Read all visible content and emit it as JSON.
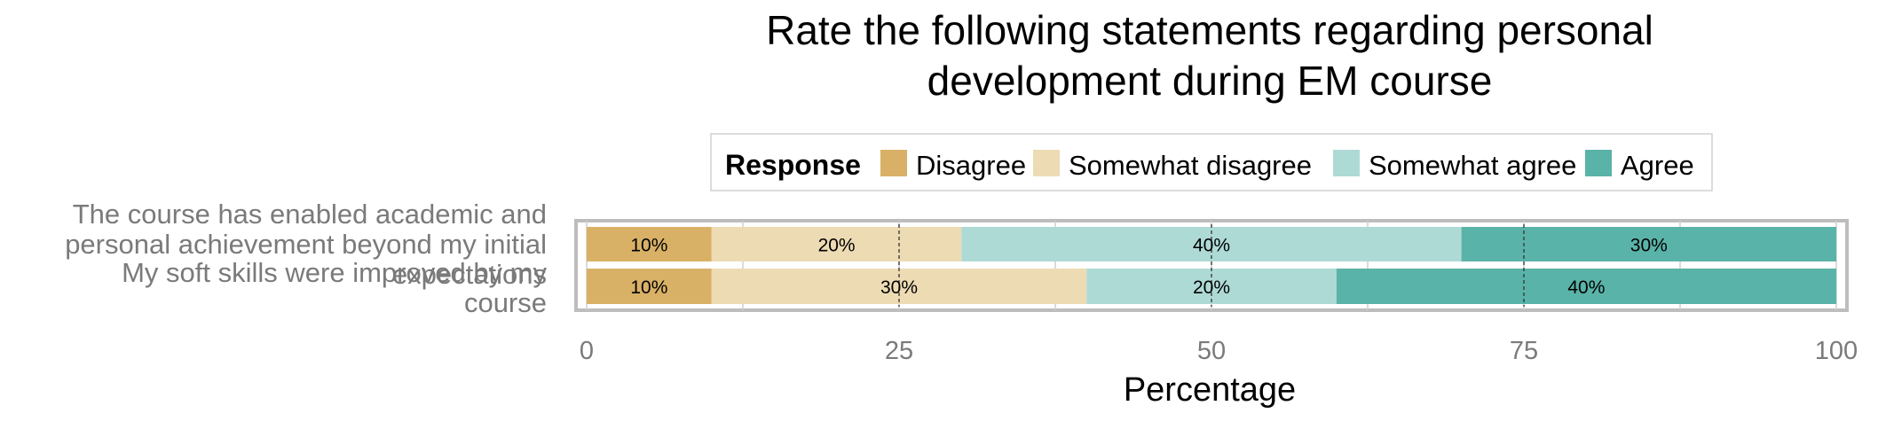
{
  "chart_data": {
    "type": "bar",
    "orientation": "horizontal",
    "stacked": true,
    "title_lines": [
      "Rate the following statements regarding personal",
      "development during EM course"
    ],
    "xlabel": "Percentage",
    "ylabel": "",
    "xlim": [
      0,
      100
    ],
    "x_ticks": [
      0,
      25,
      50,
      75,
      100
    ],
    "reference_lines": [
      25,
      50,
      75
    ],
    "grid": true,
    "legend": {
      "title": "Response",
      "placement": "top"
    },
    "categories": [
      {
        "lines": [
          "The course has enabled academic and",
          "personal achievement beyond my initial",
          "expectations"
        ]
      },
      {
        "lines": [
          "My soft skills were improved by my",
          "course"
        ]
      }
    ],
    "series": [
      {
        "name": "Disagree",
        "color": "#d9b166",
        "values": [
          10,
          10
        ],
        "labels": [
          "10%",
          "10%"
        ]
      },
      {
        "name": "Somewhat disagree",
        "color": "#eddbb4",
        "values": [
          20,
          30
        ],
        "labels": [
          "20%",
          "30%"
        ]
      },
      {
        "name": "Somewhat agree",
        "color": "#aedad6",
        "values": [
          40,
          20
        ],
        "labels": [
          "40%",
          "20%"
        ]
      },
      {
        "name": "Agree",
        "color": "#5ab3a8",
        "values": [
          30,
          40
        ],
        "labels": [
          "30%",
          "40%"
        ]
      }
    ]
  }
}
